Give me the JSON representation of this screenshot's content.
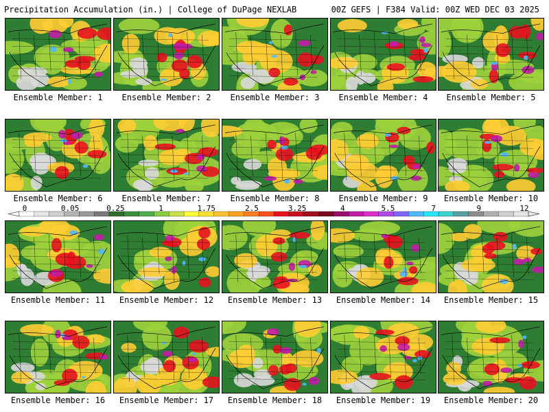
{
  "header": {
    "title_left": "Precipitation Accumulation (in.) | College of DuPage NEXLAB",
    "title_right": "00Z GEFS | F384 Valid: 00Z WED DEC 03 2025"
  },
  "members": [
    {
      "caption": "Ensemble Member: 1"
    },
    {
      "caption": "Ensemble Member: 2"
    },
    {
      "caption": "Ensemble Member: 3"
    },
    {
      "caption": "Ensemble Member: 4"
    },
    {
      "caption": "Ensemble Member: 5"
    },
    {
      "caption": "Ensemble Member: 6"
    },
    {
      "caption": "Ensemble Member: 7"
    },
    {
      "caption": "Ensemble Member: 8"
    },
    {
      "caption": "Ensemble Member: 9"
    },
    {
      "caption": "Ensemble Member: 10"
    },
    {
      "caption": "Ensemble Member: 11"
    },
    {
      "caption": "Ensemble Member: 12"
    },
    {
      "caption": "Ensemble Member: 13"
    },
    {
      "caption": "Ensemble Member: 14"
    },
    {
      "caption": "Ensemble Member: 15"
    },
    {
      "caption": "Ensemble Member: 16"
    },
    {
      "caption": "Ensemble Member: 17"
    },
    {
      "caption": "Ensemble Member: 18"
    },
    {
      "caption": "Ensemble Member: 19"
    },
    {
      "caption": "Ensemble Member: 20"
    }
  ],
  "colorbar": {
    "labels": [
      {
        "text": "0",
        "value": 0
      },
      {
        "text": "0.05",
        "value": 0.05
      },
      {
        "text": "0.25",
        "value": 0.25
      },
      {
        "text": "1",
        "value": 1
      },
      {
        "text": "1.75",
        "value": 1.75
      },
      {
        "text": "2.5",
        "value": 2.5
      },
      {
        "text": "3.25",
        "value": 3.25
      },
      {
        "text": "4",
        "value": 4
      },
      {
        "text": "5.5",
        "value": 5.5
      },
      {
        "text": "7",
        "value": 7
      },
      {
        "text": "9",
        "value": 9
      },
      {
        "text": "12",
        "value": 12
      }
    ],
    "colors": [
      "#ffffff",
      "#e6e6e6",
      "#cfcfcf",
      "#b4b4b4",
      "#9a9a9a",
      "#7a7a7a",
      "#2f6e2f",
      "#3d8f3d",
      "#4fae4f",
      "#8acc3f",
      "#c8e04a",
      "#ffff33",
      "#ffe033",
      "#ffc233",
      "#ff9f1f",
      "#ff7f1f",
      "#ff4f1f",
      "#e8121f",
      "#c80f1f",
      "#a00e1f",
      "#7c0a1f",
      "#9a0f6e",
      "#c21ca6",
      "#de2ec9",
      "#b04ae0",
      "#7f66ff",
      "#4fb8ff",
      "#26e6ff",
      "#3ad2c8",
      "#5aa0a0",
      "#8c8c8c",
      "#b0b0b0",
      "#cfcfcf",
      "#e6e6e6"
    ]
  },
  "map_colors": {
    "dry": "#d9d9d9",
    "light": "#2f7d32",
    "moderate": "#9ed23c",
    "heavy": "#ffcc33",
    "very_heavy": "#e8121f",
    "extreme": "#c21ca6",
    "peak": "#4fb8ff",
    "lines": "#000000"
  }
}
